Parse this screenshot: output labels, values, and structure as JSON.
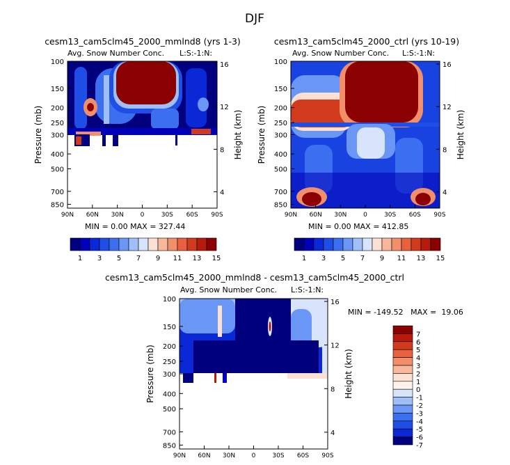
{
  "figure_title": "DJF",
  "chart_data": [
    {
      "type": "heatmap",
      "id": "p1",
      "title": "cesm13_cam5clm45_2000_mmlnd8 (yrs 1-3)",
      "subtitle": "Avg. Snow Number Conc.",
      "level_tag": "L:S:-1:N:",
      "xlabel": "",
      "ylabel": "Pressure (mb)",
      "ylabel_right": "Height (km)",
      "x_ticks": [
        "90N",
        "60N",
        "30N",
        "0",
        "30S",
        "60S",
        "90S"
      ],
      "y_ticks": [
        "100",
        "150",
        "200",
        "250",
        "300",
        "400",
        "500",
        "700",
        "850"
      ],
      "height_ticks": [
        "16",
        "12",
        "8",
        "4"
      ],
      "min_text": "MIN =    0.00   MAX = 327.44",
      "min": 0.0,
      "max": 327.44,
      "colorbar_labels": [
        "1",
        "3",
        "5",
        "7",
        "9",
        "11",
        "13",
        "15"
      ],
      "levels": [
        1,
        2,
        3,
        4,
        5,
        6,
        7,
        8,
        9,
        10,
        11,
        12,
        13,
        14,
        15
      ]
    },
    {
      "type": "heatmap",
      "id": "p2",
      "title": "cesm13_cam5clm45_2000_ctrl (yrs 10-19)",
      "subtitle": "Avg. Snow Number Conc.",
      "level_tag": "L:S:-1:N:",
      "xlabel": "",
      "ylabel": "Pressure (mb)",
      "ylabel_right": "Height (km)",
      "x_ticks": [
        "90N",
        "60N",
        "30N",
        "0",
        "30S",
        "60S",
        "90S"
      ],
      "y_ticks": [
        "100",
        "150",
        "200",
        "250",
        "300",
        "400",
        "500",
        "700",
        "850"
      ],
      "height_ticks": [
        "16",
        "12",
        "8",
        "4"
      ],
      "min_text": "MIN =    0.00   MAX = 412.85",
      "min": 0.0,
      "max": 412.85,
      "colorbar_labels": [
        "1",
        "3",
        "5",
        "7",
        "9",
        "11",
        "13",
        "15"
      ],
      "levels": [
        1,
        2,
        3,
        4,
        5,
        6,
        7,
        8,
        9,
        10,
        11,
        12,
        13,
        14,
        15
      ]
    },
    {
      "type": "heatmap",
      "id": "p3",
      "title": "cesm13_cam5clm45_2000_mmlnd8 - cesm13_cam5clm45_2000_ctrl",
      "subtitle": "Avg. Snow Number Conc.",
      "level_tag": "L:S:-1:N:",
      "xlabel": "",
      "ylabel": "Pressure (mb)",
      "ylabel_right": "Height (km)",
      "x_ticks": [
        "90N",
        "60N",
        "30N",
        "0",
        "30S",
        "60S",
        "90S"
      ],
      "y_ticks": [
        "100",
        "150",
        "200",
        "250",
        "300",
        "400",
        "500",
        "700",
        "850"
      ],
      "height_ticks": [
        "16",
        "12",
        "8",
        "4"
      ],
      "min_text": "MIN = -149.52   MAX =  19.06",
      "min": -149.52,
      "max": 19.06,
      "colorbar_labels": [
        "7",
        "6",
        "5",
        "4",
        "3",
        "2",
        "1",
        "0",
        "-1",
        "-2",
        "-3",
        "-4",
        "-5",
        "-6",
        "-7"
      ],
      "levels": [
        -7,
        -6,
        -5,
        -4,
        -3,
        -2,
        -1,
        0,
        1,
        2,
        3,
        4,
        5,
        6,
        7
      ]
    }
  ],
  "palette": {
    "sequential": [
      "#00007f",
      "#0000b8",
      "#0a28d6",
      "#1f4ee6",
      "#3b6ff0",
      "#6a96f5",
      "#9fbff9",
      "#d7e4fb",
      "#fbe0d3",
      "#f7b79b",
      "#f28f6a",
      "#e8603e",
      "#d23a1d",
      "#b51a0b",
      "#8b0000"
    ],
    "diverging": [
      "#8b0000",
      "#b51a0b",
      "#d23a1d",
      "#e8603e",
      "#f28f6a",
      "#f7b79b",
      "#fbe0d3",
      "#fdf3ea",
      "#d7e4fb",
      "#9fbff9",
      "#6a96f5",
      "#3b6ff0",
      "#1f4ee6",
      "#0a28d6",
      "#00007f"
    ]
  }
}
